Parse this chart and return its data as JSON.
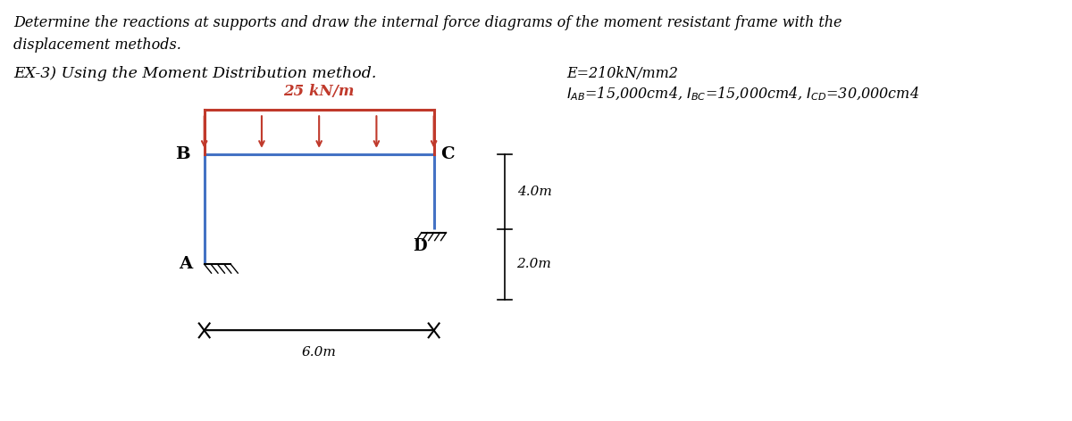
{
  "title_line1": "Determine the reactions at supports and draw the internal force diagrams of the moment resistant frame with the",
  "title_line2": "displacement methods.",
  "subtitle": "EX-3) Using the Moment Distribution method.",
  "load_label": "25 kN/m",
  "dim_horizontal": "6.0m",
  "dim_vertical_upper": "4.0m",
  "dim_vertical_lower": "2.0m",
  "label_A": "A",
  "label_B": "B",
  "label_C": "C",
  "label_D": "D",
  "info_line1": "E=210kN/mm2",
  "frame_color": "#4472C4",
  "load_color": "#C0392B",
  "text_color": "#000000",
  "bg_color": "#FFFFFF",
  "frame_lw": 2.2
}
